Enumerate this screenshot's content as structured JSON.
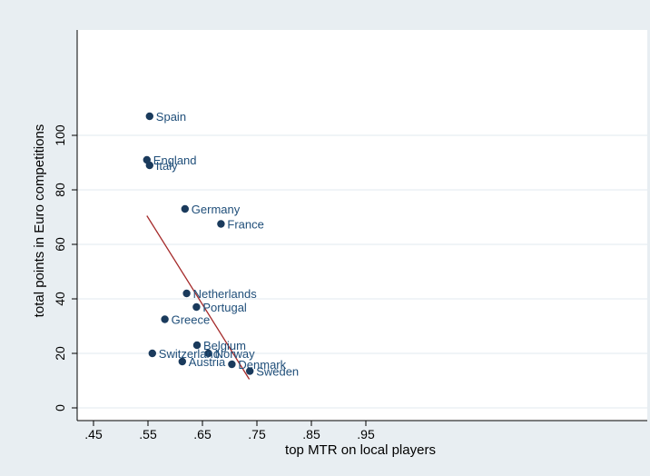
{
  "chart_data": {
    "type": "scatter",
    "title": "",
    "xlabel": "top MTR on local players",
    "ylabel": "total points in Euro competitions",
    "xlim": [
      0.45,
      0.95
    ],
    "ylim": [
      -3,
      114
    ],
    "xticks": [
      ".45",
      ".55",
      ".65",
      ".75",
      ".85",
      ".95"
    ],
    "xtick_values": [
      0.45,
      0.55,
      0.65,
      0.75,
      0.85,
      0.95
    ],
    "yticks": [
      "0",
      "20",
      "40",
      "60",
      "80",
      "100"
    ],
    "ytick_values": [
      0,
      20,
      40,
      60,
      80,
      100
    ],
    "grid": "horizontal",
    "points": [
      {
        "label": "Spain",
        "x": 0.553,
        "y": 107
      },
      {
        "label": "England",
        "x": 0.548,
        "y": 91
      },
      {
        "label": "Italy",
        "x": 0.553,
        "y": 89
      },
      {
        "label": "Germany",
        "x": 0.618,
        "y": 73
      },
      {
        "label": "France",
        "x": 0.684,
        "y": 67.5
      },
      {
        "label": "Netherlands",
        "x": 0.621,
        "y": 42
      },
      {
        "label": "Portugal",
        "x": 0.639,
        "y": 37
      },
      {
        "label": "Greece",
        "x": 0.581,
        "y": 32.5
      },
      {
        "label": "Belgium",
        "x": 0.64,
        "y": 23
      },
      {
        "label": "Norway",
        "x": 0.661,
        "y": 20
      },
      {
        "label": "Switzerland",
        "x": 0.558,
        "y": 20
      },
      {
        "label": "Austria",
        "x": 0.613,
        "y": 17
      },
      {
        "label": "Denmark",
        "x": 0.704,
        "y": 16
      },
      {
        "label": "Sweden",
        "x": 0.737,
        "y": 13.5
      }
    ],
    "fit_line": {
      "x": [
        0.548,
        0.736
      ],
      "y": [
        70.5,
        10.5
      ]
    },
    "colors": {
      "background": "#e8eef2",
      "plot": "#ffffff",
      "marker": "#1a3a5c",
      "label": "#1f4e79",
      "fit_line": "#a52a2a",
      "grid": "#e8eef2"
    }
  }
}
